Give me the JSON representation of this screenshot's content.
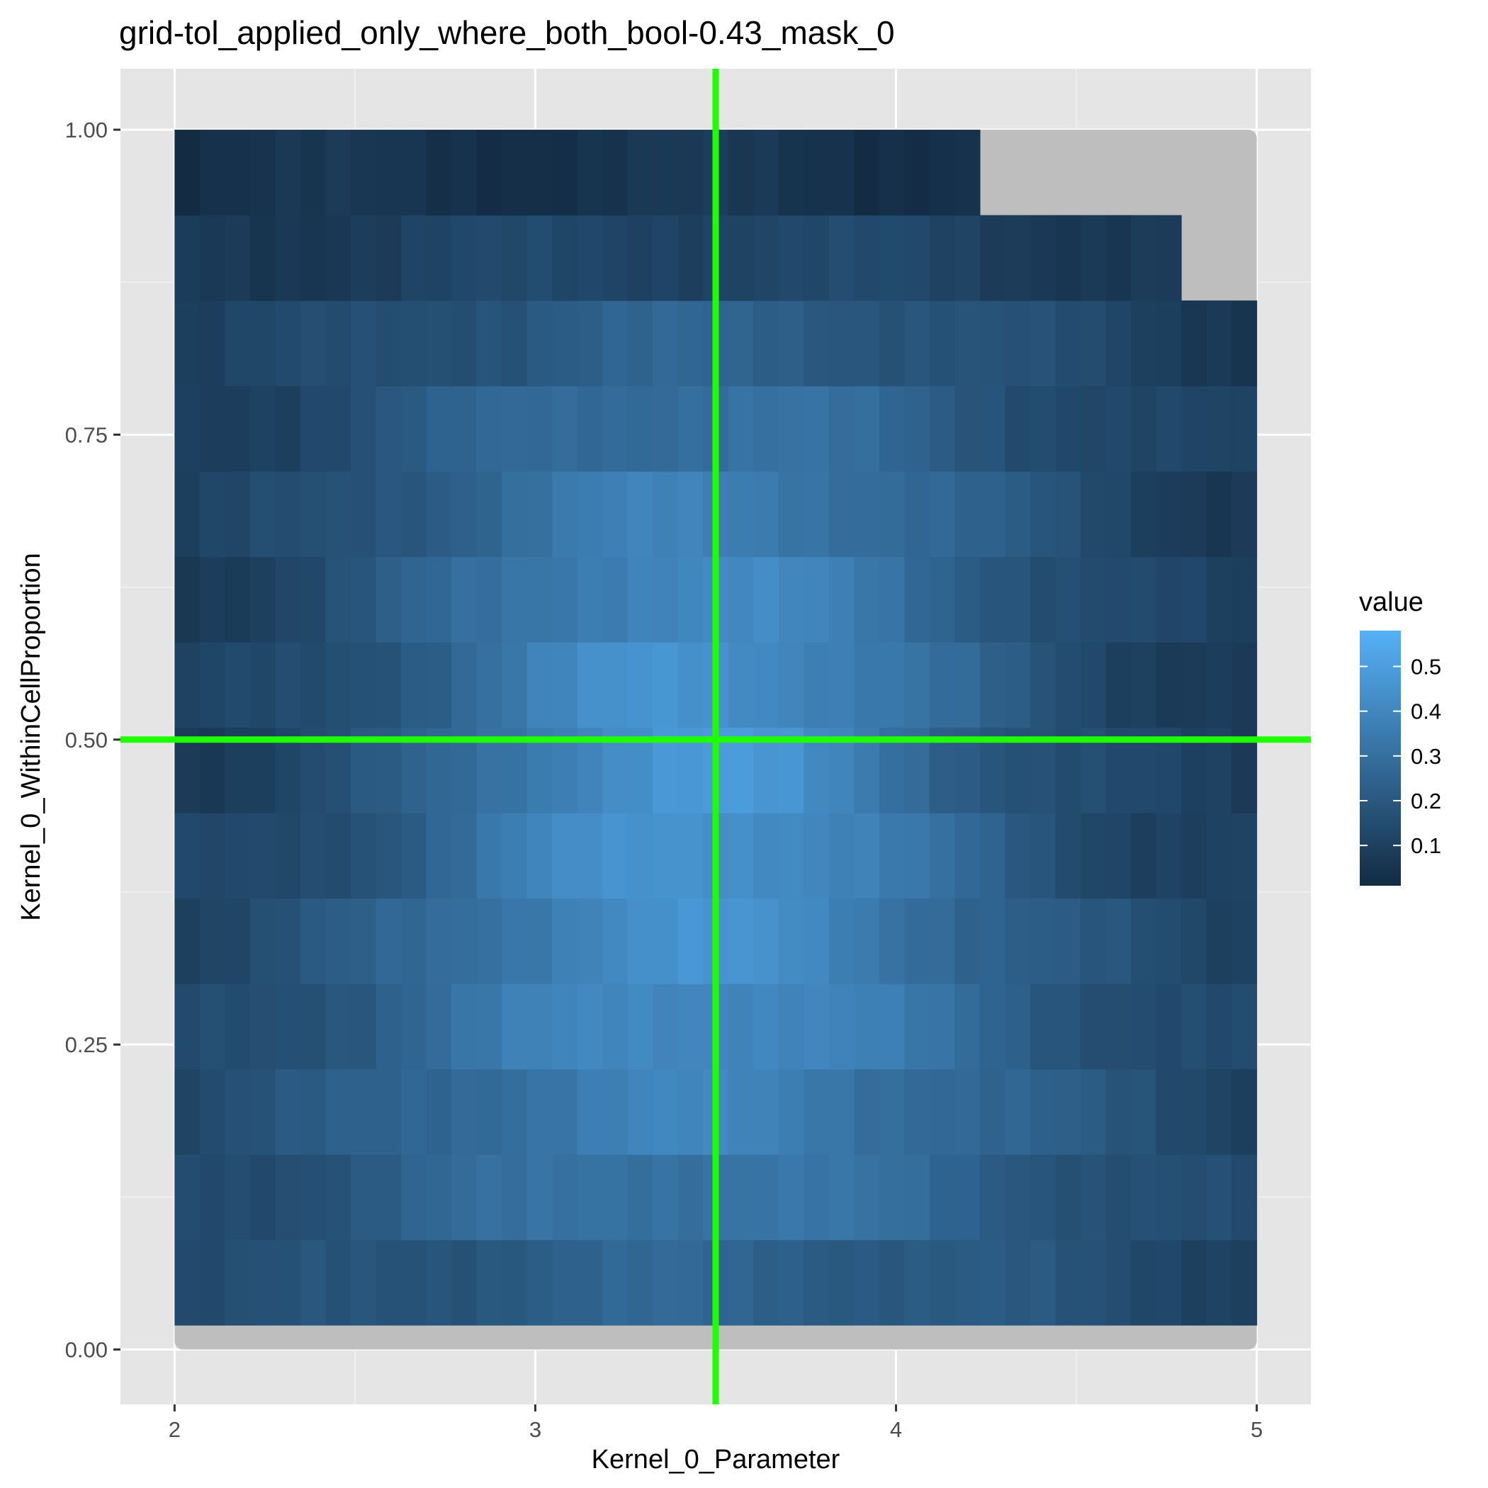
{
  "chart_data": {
    "type": "heatmap",
    "title": "grid-tol_applied_only_where_both_bool-0.43_mask_0",
    "xlabel": "Kernel_0_Parameter",
    "ylabel": "Kernel_0_WithinCellProportion",
    "xlim": [
      1.85,
      5.15
    ],
    "ylim": [
      -0.045,
      1.05
    ],
    "x_ticks": [
      2,
      3,
      4,
      5
    ],
    "x_tick_labels": [
      "2",
      "3",
      "4",
      "5"
    ],
    "y_ticks": [
      0.0,
      0.25,
      0.5,
      0.75,
      1.0
    ],
    "y_tick_labels": [
      "0.00",
      "0.25",
      "0.50",
      "0.75",
      "1.00"
    ],
    "grid": true,
    "legend": {
      "title": "value",
      "position": "right",
      "min": 0.01,
      "max": 0.58,
      "ticks": [
        0.1,
        0.2,
        0.3,
        0.4,
        0.5
      ],
      "tick_labels": [
        "0.1",
        "0.2",
        "0.3",
        "0.4",
        "0.5"
      ],
      "low_color": "#132B43",
      "high_color": "#56B1F7"
    },
    "reference_lines": {
      "color": "#1EFF00",
      "x": 3.5,
      "y": 0.5
    },
    "background_region": {
      "color": "#BEBEBE",
      "x": [
        2.0,
        5.0
      ],
      "y": [
        0.0,
        1.0
      ]
    },
    "grid_x": {
      "start": 2.0,
      "end": 5.0,
      "n": 43
    },
    "y_rows": [
      {
        "y0": 0.02,
        "y1": 0.09
      },
      {
        "y0": 0.09,
        "y1": 0.16
      },
      {
        "y0": 0.16,
        "y1": 0.23
      },
      {
        "y0": 0.23,
        "y1": 0.3
      },
      {
        "y0": 0.3,
        "y1": 0.37
      },
      {
        "y0": 0.37,
        "y1": 0.44
      },
      {
        "y0": 0.44,
        "y1": 0.51
      },
      {
        "y0": 0.51,
        "y1": 0.58
      },
      {
        "y0": 0.58,
        "y1": 0.65
      },
      {
        "y0": 0.65,
        "y1": 0.72
      },
      {
        "y0": 0.72,
        "y1": 0.79
      },
      {
        "y0": 0.79,
        "y1": 0.86
      },
      {
        "y0": 0.86,
        "y1": 0.93
      },
      {
        "y0": 0.93,
        "y1": 1.0
      }
    ],
    "row_profile": [
      {
        "ncols": 43,
        "peak": 0.25,
        "base": 0.09
      },
      {
        "ncols": 43,
        "peak": 0.33,
        "base": 0.09
      },
      {
        "ncols": 43,
        "peak": 0.38,
        "base": 0.09
      },
      {
        "ncols": 43,
        "peak": 0.42,
        "base": 0.09
      },
      {
        "ncols": 43,
        "peak": 0.44,
        "base": 0.09
      },
      {
        "ncols": 43,
        "peak": 0.46,
        "base": 0.08
      },
      {
        "ncols": 43,
        "peak": 0.47,
        "base": 0.08
      },
      {
        "ncols": 43,
        "peak": 0.45,
        "base": 0.07
      },
      {
        "ncols": 43,
        "peak": 0.41,
        "base": 0.06
      },
      {
        "ncols": 43,
        "peak": 0.37,
        "base": 0.05
      },
      {
        "ncols": 43,
        "peak": 0.31,
        "base": 0.05
      },
      {
        "ncols": 43,
        "peak": 0.24,
        "base": 0.05
      },
      {
        "ncols": 40,
        "peak": 0.13,
        "base": 0.05
      },
      {
        "ncols": 32,
        "peak": 0.05,
        "base": 0.03
      }
    ]
  }
}
